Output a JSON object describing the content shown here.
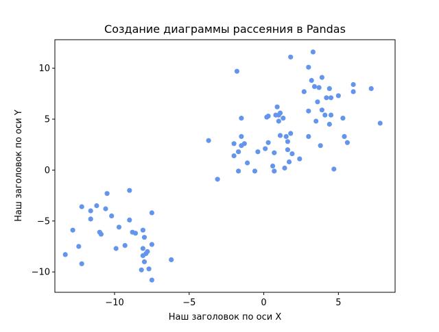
{
  "chart_data": {
    "type": "scatter",
    "title": "Создание диаграммы рассеяния в Pandas",
    "xlabel": "Наш заголовок по оси X",
    "ylabel": "Наш заголовок по оси Y",
    "xlim": [
      -14.0,
      8.8
    ],
    "ylim": [
      -12.0,
      12.8
    ],
    "xticks": [
      -10,
      -5,
      0,
      5
    ],
    "yticks": [
      -10,
      -5,
      0,
      5,
      10
    ],
    "grid": false,
    "color": "#6495ed",
    "points": [
      {
        "x": -13.3,
        "y": -8.3
      },
      {
        "x": -12.8,
        "y": -5.9
      },
      {
        "x": -12.4,
        "y": -7.5
      },
      {
        "x": -12.2,
        "y": -3.6
      },
      {
        "x": -12.2,
        "y": -9.2
      },
      {
        "x": -11.6,
        "y": -4.0
      },
      {
        "x": -11.6,
        "y": -4.8
      },
      {
        "x": -11.2,
        "y": -3.5
      },
      {
        "x": -11.0,
        "y": -6.1
      },
      {
        "x": -10.9,
        "y": -6.3
      },
      {
        "x": -10.6,
        "y": -3.8
      },
      {
        "x": -10.5,
        "y": -2.3
      },
      {
        "x": -10.2,
        "y": -4.5
      },
      {
        "x": -9.9,
        "y": -7.7
      },
      {
        "x": -9.7,
        "y": -5.6
      },
      {
        "x": -9.3,
        "y": -7.4
      },
      {
        "x": -9.0,
        "y": -4.9
      },
      {
        "x": -9.0,
        "y": -2.0
      },
      {
        "x": -8.8,
        "y": -6.1
      },
      {
        "x": -8.6,
        "y": -6.2
      },
      {
        "x": -8.2,
        "y": -9.8
      },
      {
        "x": -8.1,
        "y": -5.9
      },
      {
        "x": -8.1,
        "y": -7.7
      },
      {
        "x": -8.0,
        "y": -6.6
      },
      {
        "x": -8.1,
        "y": -8.4
      },
      {
        "x": -7.9,
        "y": -8.2
      },
      {
        "x": -8.0,
        "y": -9.0
      },
      {
        "x": -7.8,
        "y": -8.0
      },
      {
        "x": -7.7,
        "y": -9.7
      },
      {
        "x": -7.5,
        "y": -7.3
      },
      {
        "x": -7.5,
        "y": -10.8
      },
      {
        "x": -7.5,
        "y": -4.2
      },
      {
        "x": -6.2,
        "y": -8.8
      },
      {
        "x": -3.7,
        "y": 2.9
      },
      {
        "x": -3.1,
        "y": -0.9
      },
      {
        "x": -2.0,
        "y": 2.6
      },
      {
        "x": -2.0,
        "y": 1.4
      },
      {
        "x": -1.8,
        "y": 9.7
      },
      {
        "x": -1.7,
        "y": 1.8
      },
      {
        "x": -1.7,
        "y": -0.1
      },
      {
        "x": -1.5,
        "y": 5.1
      },
      {
        "x": -1.5,
        "y": 3.3
      },
      {
        "x": -1.5,
        "y": 2.4
      },
      {
        "x": -1.3,
        "y": 2.6
      },
      {
        "x": -1.1,
        "y": 0.7
      },
      {
        "x": -0.6,
        "y": -0.1
      },
      {
        "x": -0.4,
        "y": 1.8
      },
      {
        "x": 0.1,
        "y": 2.1
      },
      {
        "x": 0.2,
        "y": 5.2
      },
      {
        "x": 0.3,
        "y": 2.7
      },
      {
        "x": 0.3,
        "y": 5.3
      },
      {
        "x": 0.6,
        "y": 0.4
      },
      {
        "x": 0.7,
        "y": 1.7
      },
      {
        "x": 0.7,
        "y": -0.1
      },
      {
        "x": 0.8,
        "y": 5.4
      },
      {
        "x": 0.9,
        "y": 6.2
      },
      {
        "x": 1.0,
        "y": 5.4
      },
      {
        "x": 1.0,
        "y": 4.8
      },
      {
        "x": 1.1,
        "y": 5.6
      },
      {
        "x": 1.1,
        "y": 3.4
      },
      {
        "x": 1.3,
        "y": 5.1
      },
      {
        "x": 1.4,
        "y": 0.2
      },
      {
        "x": 1.5,
        "y": 3.3
      },
      {
        "x": 1.6,
        "y": 2.0
      },
      {
        "x": 1.6,
        "y": 2.8
      },
      {
        "x": 1.7,
        "y": 0.8
      },
      {
        "x": 1.8,
        "y": 3.6
      },
      {
        "x": 1.8,
        "y": 11.1
      },
      {
        "x": 1.9,
        "y": 1.6
      },
      {
        "x": 2.4,
        "y": 1.1
      },
      {
        "x": 2.7,
        "y": 7.7
      },
      {
        "x": 3.0,
        "y": 10.1
      },
      {
        "x": 3.0,
        "y": 3.3
      },
      {
        "x": 3.0,
        "y": 5.8
      },
      {
        "x": 3.2,
        "y": 8.8
      },
      {
        "x": 3.3,
        "y": 11.6
      },
      {
        "x": 3.4,
        "y": 8.2
      },
      {
        "x": 3.5,
        "y": 4.8
      },
      {
        "x": 3.6,
        "y": 6.7
      },
      {
        "x": 3.7,
        "y": 8.1
      },
      {
        "x": 3.8,
        "y": 2.4
      },
      {
        "x": 3.9,
        "y": 9.1
      },
      {
        "x": 3.9,
        "y": 5.9
      },
      {
        "x": 4.1,
        "y": 5.4
      },
      {
        "x": 4.2,
        "y": 7.1
      },
      {
        "x": 4.4,
        "y": 8.0
      },
      {
        "x": 4.4,
        "y": 4.5
      },
      {
        "x": 4.5,
        "y": 7.1
      },
      {
        "x": 4.5,
        "y": 5.4
      },
      {
        "x": 4.7,
        "y": 0.1
      },
      {
        "x": 5.0,
        "y": 7.3
      },
      {
        "x": 5.3,
        "y": 5.1
      },
      {
        "x": 5.4,
        "y": 3.3
      },
      {
        "x": 5.6,
        "y": 2.7
      },
      {
        "x": 6.0,
        "y": 8.4
      },
      {
        "x": 6.0,
        "y": 7.7
      },
      {
        "x": 7.2,
        "y": 8.0
      },
      {
        "x": 7.8,
        "y": 4.6
      }
    ]
  }
}
